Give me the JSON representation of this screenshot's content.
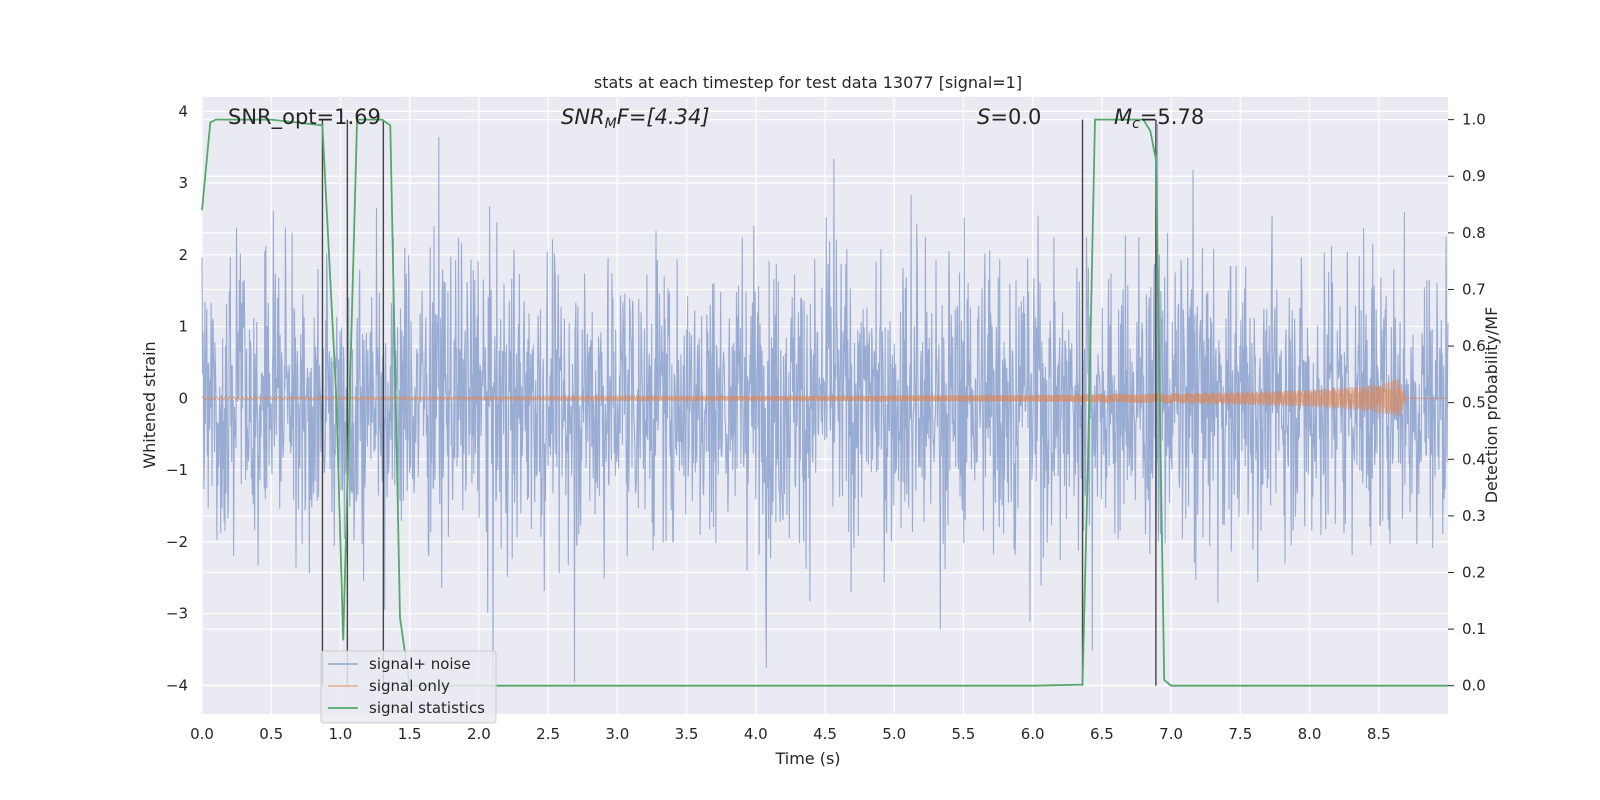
{
  "chart_data": {
    "type": "line",
    "title": "stats at each timestep for test data 13077 [signal=1]",
    "xlabel": "Time (s)",
    "ylabel_left": "Whitened strain",
    "ylabel_right": "Detection probability/MF",
    "xlim": [
      0.0,
      9.0
    ],
    "ylim_left": [
      -4.4,
      4.2
    ],
    "ylim_right": [
      -0.05,
      1.04
    ],
    "x_ticks": [
      "0.0",
      "0.5",
      "1.0",
      "1.5",
      "2.0",
      "2.5",
      "3.0",
      "3.5",
      "4.0",
      "4.5",
      "5.0",
      "5.5",
      "6.0",
      "6.5",
      "7.0",
      "7.5",
      "8.0",
      "8.5"
    ],
    "y_left_ticks": [
      "4",
      "3",
      "2",
      "1",
      "0",
      "−1",
      "−2",
      "−3",
      "−4"
    ],
    "y_right_ticks": [
      "1.0",
      "0.9",
      "0.8",
      "0.7",
      "0.6",
      "0.5",
      "0.4",
      "0.3",
      "0.2",
      "0.1",
      "0.0"
    ],
    "grid": true,
    "legend_position": "lower-left",
    "annotations": {
      "snr_opt": "SNR_opt=1.69",
      "snr_mf_base": "SNR",
      "snr_mf_sub": "M",
      "snr_mf_rest": "F=[4.34]",
      "s_var": "S",
      "s_rest": "=0.0",
      "mc_base": "M",
      "mc_sub": "c",
      "mc_rest": "=5.78"
    },
    "series": [
      {
        "name": "signal+ noise",
        "color": "#8fa4cf",
        "description_values": "noise trace, peak amplitude about ±2.5 to ±3.9"
      },
      {
        "name": "signal only",
        "color": "#dd8452",
        "x": [
          0.0,
          1.0,
          2.0,
          3.0,
          4.0,
          5.0,
          6.0,
          7.0,
          7.5,
          8.0,
          8.3,
          8.5,
          8.6,
          8.65,
          8.7,
          9.0
        ],
        "envelope": [
          0.02,
          0.02,
          0.02,
          0.03,
          0.03,
          0.04,
          0.05,
          0.07,
          0.09,
          0.12,
          0.16,
          0.2,
          0.25,
          0.28,
          0.0,
          0.0
        ]
      },
      {
        "name": "signal statistics",
        "color": "#55a868",
        "axis": "right",
        "x": [
          0.0,
          0.06,
          0.1,
          0.5,
          0.87,
          0.97,
          1.02,
          1.12,
          1.3,
          1.36,
          1.43,
          1.5,
          2.0,
          3.0,
          4.0,
          5.0,
          6.0,
          6.36,
          6.4,
          6.45,
          6.5,
          6.8,
          6.85,
          6.89,
          6.95,
          7.0,
          7.5,
          8.0,
          8.5,
          9.0
        ],
        "y": [
          0.84,
          0.995,
          1.0,
          1.0,
          0.99,
          0.51,
          0.08,
          1.0,
          1.0,
          0.99,
          0.12,
          0.0,
          0.0,
          0.0,
          0.0,
          0.0,
          0.0,
          0.002,
          0.4,
          1.0,
          1.0,
          1.0,
          0.98,
          0.93,
          0.01,
          0.0,
          0.0,
          0.0,
          0.0,
          0.0
        ]
      }
    ],
    "vertical_markers": [
      0.87,
      1.05,
      1.31,
      6.36,
      6.89
    ]
  }
}
